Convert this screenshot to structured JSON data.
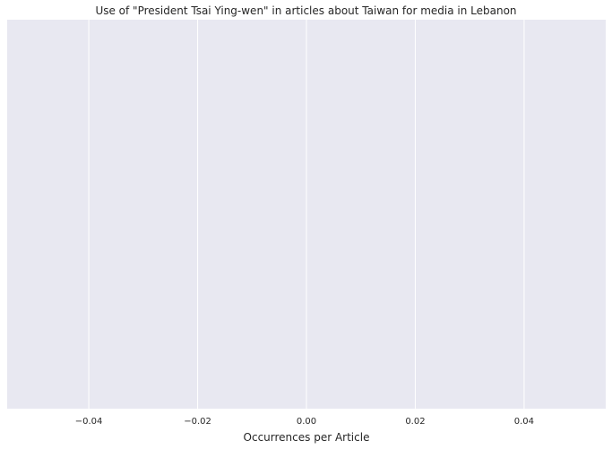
{
  "chart_data": {
    "type": "bar",
    "title": "Use of \"President Tsai Ying-wen\" in articles about Taiwan for media in Lebanon",
    "xlabel": "Occurrences per Article",
    "ylabel": "",
    "categories": [],
    "values": [],
    "xlim": [
      -0.055,
      0.055
    ],
    "xticks": [
      -0.04,
      -0.02,
      0.0,
      0.02,
      0.04
    ],
    "xtick_labels": [
      "−0.04",
      "−0.02",
      "0.00",
      "0.02",
      "0.04"
    ],
    "grid": true,
    "legend": "none",
    "colors": {
      "plot_background": "#e8e8f1",
      "grid": "#ffffff",
      "text": "#262626"
    }
  }
}
